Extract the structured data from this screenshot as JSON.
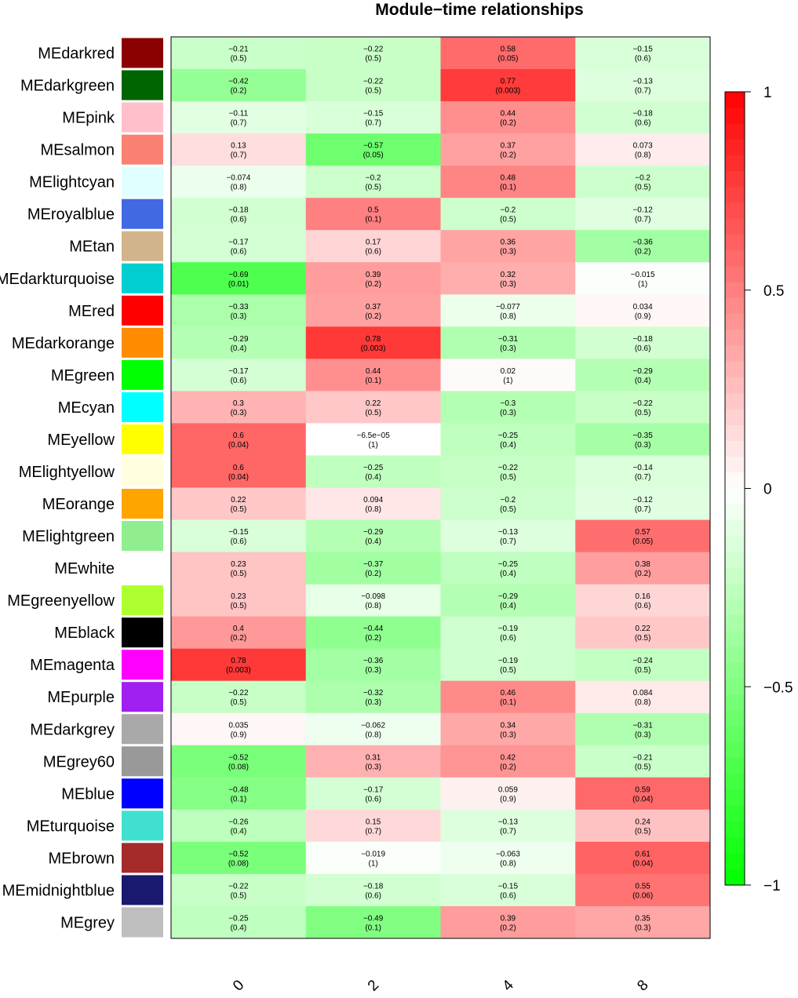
{
  "chart_data": {
    "type": "heatmap",
    "title": "Module−time relationships",
    "columns": [
      "0",
      "2",
      "4",
      "8"
    ],
    "rows": [
      {
        "name": "MEdarkred",
        "color": "#8B0000",
        "values": [
          [
            "−0.21",
            "(0.5)"
          ],
          [
            "−0.22",
            "(0.5)"
          ],
          [
            "0.58",
            "(0.05)"
          ],
          [
            "−0.15",
            "(0.6)"
          ]
        ]
      },
      {
        "name": "MEdarkgreen",
        "color": "#006400",
        "values": [
          [
            "−0.42",
            "(0.2)"
          ],
          [
            "−0.22",
            "(0.5)"
          ],
          [
            "0.77",
            "(0.003)"
          ],
          [
            "−0.13",
            "(0.7)"
          ]
        ]
      },
      {
        "name": "MEpink",
        "color": "#FFC0CB",
        "values": [
          [
            "−0.11",
            "(0.7)"
          ],
          [
            "−0.15",
            "(0.7)"
          ],
          [
            "0.44",
            "(0.2)"
          ],
          [
            "−0.18",
            "(0.6)"
          ]
        ]
      },
      {
        "name": "MEsalmon",
        "color": "#FA8072",
        "values": [
          [
            "0.13",
            "(0.7)"
          ],
          [
            "−0.57",
            "(0.05)"
          ],
          [
            "0.37",
            "(0.2)"
          ],
          [
            "0.073",
            "(0.8)"
          ]
        ]
      },
      {
        "name": "MElightcyan",
        "color": "#E0FFFF",
        "values": [
          [
            "−0.074",
            "(0.8)"
          ],
          [
            "−0.2",
            "(0.5)"
          ],
          [
            "0.48",
            "(0.1)"
          ],
          [
            "−0.2",
            "(0.5)"
          ]
        ]
      },
      {
        "name": "MEroyalblue",
        "color": "#4169E1",
        "values": [
          [
            "−0.18",
            "(0.6)"
          ],
          [
            "0.5",
            "(0.1)"
          ],
          [
            "−0.2",
            "(0.5)"
          ],
          [
            "−0.12",
            "(0.7)"
          ]
        ]
      },
      {
        "name": "MEtan",
        "color": "#D2B48C",
        "values": [
          [
            "−0.17",
            "(0.6)"
          ],
          [
            "0.17",
            "(0.6)"
          ],
          [
            "0.36",
            "(0.3)"
          ],
          [
            "−0.36",
            "(0.2)"
          ]
        ]
      },
      {
        "name": "MEdarkturquoise",
        "color": "#00CED1",
        "values": [
          [
            "−0.69",
            "(0.01)"
          ],
          [
            "0.39",
            "(0.2)"
          ],
          [
            "0.32",
            "(0.3)"
          ],
          [
            "−0.015",
            "(1)"
          ]
        ]
      },
      {
        "name": "MEred",
        "color": "#FF0000",
        "values": [
          [
            "−0.33",
            "(0.3)"
          ],
          [
            "0.37",
            "(0.2)"
          ],
          [
            "−0.077",
            "(0.8)"
          ],
          [
            "0.034",
            "(0.9)"
          ]
        ]
      },
      {
        "name": "MEdarkorange",
        "color": "#FF8C00",
        "values": [
          [
            "−0.29",
            "(0.4)"
          ],
          [
            "0.78",
            "(0.003)"
          ],
          [
            "−0.31",
            "(0.3)"
          ],
          [
            "−0.18",
            "(0.6)"
          ]
        ]
      },
      {
        "name": "MEgreen",
        "color": "#00FF00",
        "values": [
          [
            "−0.17",
            "(0.6)"
          ],
          [
            "0.44",
            "(0.1)"
          ],
          [
            "0.02",
            "(1)"
          ],
          [
            "−0.29",
            "(0.4)"
          ]
        ]
      },
      {
        "name": "MEcyan",
        "color": "#00FFFF",
        "values": [
          [
            "0.3",
            "(0.3)"
          ],
          [
            "0.22",
            "(0.5)"
          ],
          [
            "−0.3",
            "(0.3)"
          ],
          [
            "−0.22",
            "(0.5)"
          ]
        ]
      },
      {
        "name": "MEyellow",
        "color": "#FFFF00",
        "values": [
          [
            "0.6",
            "(0.04)"
          ],
          [
            "−6.5e−05",
            "(1)"
          ],
          [
            "−0.25",
            "(0.4)"
          ],
          [
            "−0.35",
            "(0.3)"
          ]
        ]
      },
      {
        "name": "MElightyellow",
        "color": "#FFFFE0",
        "values": [
          [
            "0.6",
            "(0.04)"
          ],
          [
            "−0.25",
            "(0.4)"
          ],
          [
            "−0.22",
            "(0.5)"
          ],
          [
            "−0.14",
            "(0.7)"
          ]
        ]
      },
      {
        "name": "MEorange",
        "color": "#FFA500",
        "values": [
          [
            "0.22",
            "(0.5)"
          ],
          [
            "0.094",
            "(0.8)"
          ],
          [
            "−0.2",
            "(0.5)"
          ],
          [
            "−0.12",
            "(0.7)"
          ]
        ]
      },
      {
        "name": "MElightgreen",
        "color": "#90EE90",
        "values": [
          [
            "−0.15",
            "(0.6)"
          ],
          [
            "−0.29",
            "(0.4)"
          ],
          [
            "−0.13",
            "(0.7)"
          ],
          [
            "0.57",
            "(0.05)"
          ]
        ]
      },
      {
        "name": "MEwhite",
        "color": "#FFFFFF",
        "values": [
          [
            "0.23",
            "(0.5)"
          ],
          [
            "−0.37",
            "(0.2)"
          ],
          [
            "−0.25",
            "(0.4)"
          ],
          [
            "0.38",
            "(0.2)"
          ]
        ]
      },
      {
        "name": "MEgreenyellow",
        "color": "#ADFF2F",
        "values": [
          [
            "0.23",
            "(0.5)"
          ],
          [
            "−0.098",
            "(0.8)"
          ],
          [
            "−0.29",
            "(0.4)"
          ],
          [
            "0.16",
            "(0.6)"
          ]
        ]
      },
      {
        "name": "MEblack",
        "color": "#000000",
        "values": [
          [
            "0.4",
            "(0.2)"
          ],
          [
            "−0.44",
            "(0.2)"
          ],
          [
            "−0.19",
            "(0.6)"
          ],
          [
            "0.22",
            "(0.5)"
          ]
        ]
      },
      {
        "name": "MEmagenta",
        "color": "#FF00FF",
        "values": [
          [
            "0.78",
            "(0.003)"
          ],
          [
            "−0.36",
            "(0.3)"
          ],
          [
            "−0.19",
            "(0.5)"
          ],
          [
            "−0.24",
            "(0.5)"
          ]
        ]
      },
      {
        "name": "MEpurple",
        "color": "#A020F0",
        "values": [
          [
            "−0.22",
            "(0.5)"
          ],
          [
            "−0.32",
            "(0.3)"
          ],
          [
            "0.46",
            "(0.1)"
          ],
          [
            "0.084",
            "(0.8)"
          ]
        ]
      },
      {
        "name": "MEdarkgrey",
        "color": "#A9A9A9",
        "values": [
          [
            "0.035",
            "(0.9)"
          ],
          [
            "−0.062",
            "(0.8)"
          ],
          [
            "0.34",
            "(0.3)"
          ],
          [
            "−0.31",
            "(0.3)"
          ]
        ]
      },
      {
        "name": "MEgrey60",
        "color": "#999999",
        "values": [
          [
            "−0.52",
            "(0.08)"
          ],
          [
            "0.31",
            "(0.3)"
          ],
          [
            "0.42",
            "(0.2)"
          ],
          [
            "−0.21",
            "(0.5)"
          ]
        ]
      },
      {
        "name": "MEblue",
        "color": "#0000FF",
        "values": [
          [
            "−0.48",
            "(0.1)"
          ],
          [
            "−0.17",
            "(0.6)"
          ],
          [
            "0.059",
            "(0.9)"
          ],
          [
            "0.59",
            "(0.04)"
          ]
        ]
      },
      {
        "name": "MEturquoise",
        "color": "#40E0D0",
        "values": [
          [
            "−0.26",
            "(0.4)"
          ],
          [
            "0.15",
            "(0.7)"
          ],
          [
            "−0.13",
            "(0.7)"
          ],
          [
            "0.24",
            "(0.5)"
          ]
        ]
      },
      {
        "name": "MEbrown",
        "color": "#A52A2A",
        "values": [
          [
            "−0.52",
            "(0.08)"
          ],
          [
            "−0.019",
            "(1)"
          ],
          [
            "−0.063",
            "(0.8)"
          ],
          [
            "0.61",
            "(0.04)"
          ]
        ]
      },
      {
        "name": "MEmidnightblue",
        "color": "#191970",
        "values": [
          [
            "−0.22",
            "(0.5)"
          ],
          [
            "−0.18",
            "(0.6)"
          ],
          [
            "−0.15",
            "(0.6)"
          ],
          [
            "0.55",
            "(0.06)"
          ]
        ]
      },
      {
        "name": "MEgrey",
        "color": "#BEBEBE",
        "values": [
          [
            "−0.25",
            "(0.4)"
          ],
          [
            "−0.49",
            "(0.1)"
          ],
          [
            "0.39",
            "(0.2)"
          ],
          [
            "0.35",
            "(0.3)"
          ]
        ]
      }
    ],
    "color_scale": {
      "low_color": "#00FF00",
      "mid_color": "#FFFFFF",
      "high_color": "#FF0000",
      "range": [
        -1,
        1
      ],
      "ticks": [
        "1",
        "0.5",
        "0",
        "−0.5",
        "−1"
      ]
    }
  }
}
